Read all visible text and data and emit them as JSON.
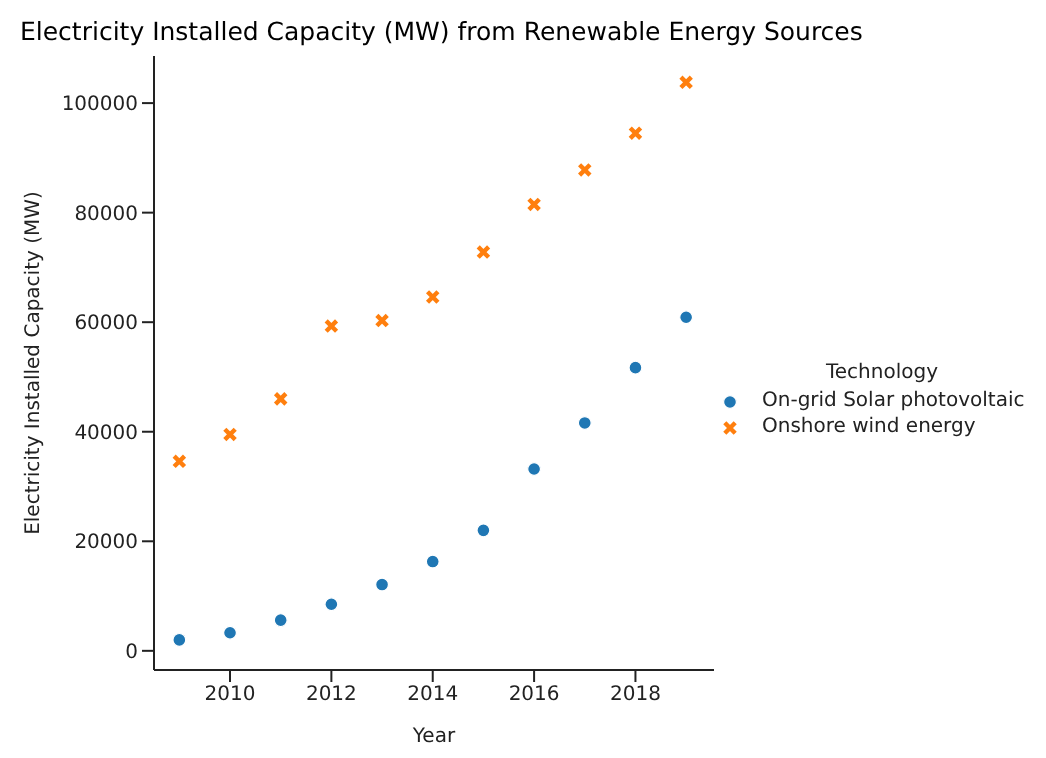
{
  "chart_data": {
    "type": "scatter",
    "title": "Electricity Installed Capacity (MW) from Renewable Energy Sources",
    "xlabel": "Year",
    "ylabel": "Electricity Installed Capacity (MW)",
    "legend_title": "Technology",
    "legend": "right",
    "x": [
      2009,
      2010,
      2011,
      2012,
      2013,
      2014,
      2015,
      2016,
      2017,
      2018,
      2019
    ],
    "series": [
      {
        "name": "On-grid Solar photovoltaic",
        "color": "#1f77b4",
        "marker": "circle",
        "values": [
          2000,
          3300,
          5600,
          8500,
          12100,
          16300,
          22000,
          33200,
          41600,
          51700,
          60900
        ]
      },
      {
        "name": "Onshore wind energy",
        "color": "#ff7f0e",
        "marker": "cross",
        "values": [
          34600,
          39500,
          46000,
          59300,
          60300,
          64600,
          72800,
          81500,
          87800,
          94500,
          103800
        ]
      }
    ],
    "xlim": [
      2008.5,
      2019.55
    ],
    "xticks": [
      2010,
      2012,
      2014,
      2016,
      2018
    ],
    "ylim": [
      -3500,
      108600
    ],
    "yticks": [
      0,
      20000,
      40000,
      60000,
      80000,
      100000
    ],
    "grid": false
  }
}
